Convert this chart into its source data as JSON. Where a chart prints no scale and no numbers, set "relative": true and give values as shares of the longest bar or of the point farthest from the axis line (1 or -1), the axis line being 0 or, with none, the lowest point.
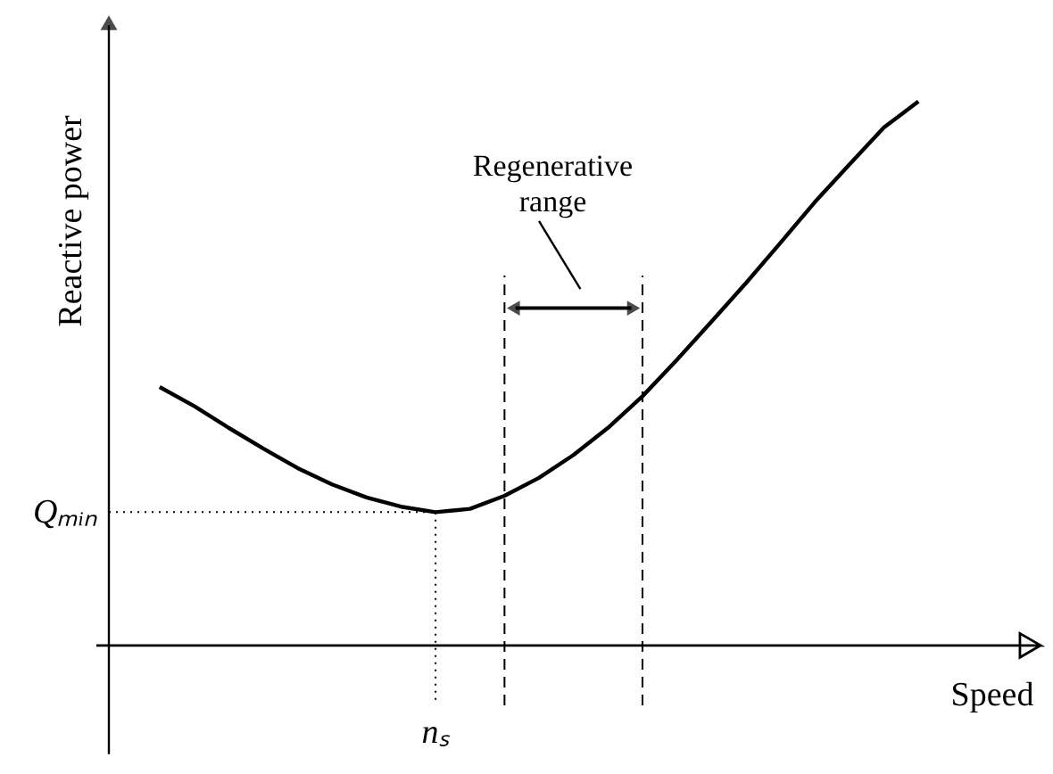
{
  "chart_data": {
    "type": "line",
    "relative": true,
    "xlabel": "Speed",
    "ylabel": "Reactive power",
    "categories": [
      null,
      null,
      null,
      null,
      null,
      null,
      null,
      null,
      null,
      null,
      null,
      null,
      null,
      null,
      null,
      null,
      null,
      null,
      null,
      null,
      null,
      null,
      null
    ],
    "series": [
      {
        "color": "#000000",
        "values": [
          0.475,
          0.44,
          0.4,
          0.362,
          0.326,
          0.296,
          0.272,
          0.255,
          0.245,
          0.251,
          0.275,
          0.308,
          0.35,
          0.4,
          0.458,
          0.525,
          0.595,
          0.666,
          0.74,
          0.815,
          0.884,
          0.952,
          1.0
        ]
      }
    ],
    "annotations": [
      "Qₘᵢₙ",
      "nₛ",
      "Regenerative range"
    ]
  }
}
